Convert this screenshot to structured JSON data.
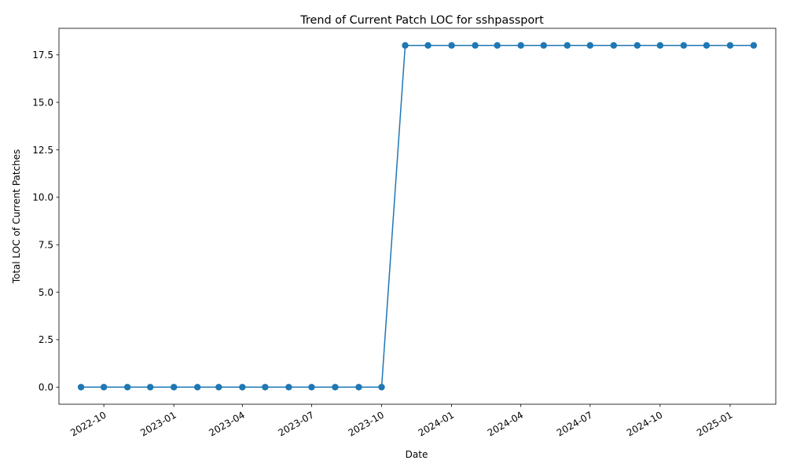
{
  "chart_data": {
    "type": "line",
    "title": "Trend of Current Patch LOC for sshpassport",
    "xlabel": "Date",
    "ylabel": "Total LOC of Current Patches",
    "x": [
      "2022-09-01",
      "2022-10-01",
      "2022-11-01",
      "2022-12-01",
      "2023-01-01",
      "2023-02-01",
      "2023-03-01",
      "2023-04-01",
      "2023-05-01",
      "2023-06-01",
      "2023-07-01",
      "2023-08-01",
      "2023-09-01",
      "2023-10-01",
      "2023-11-01",
      "2023-12-01",
      "2024-01-01",
      "2024-02-01",
      "2024-03-01",
      "2024-04-01",
      "2024-05-01",
      "2024-06-01",
      "2024-07-01",
      "2024-08-01",
      "2024-09-01",
      "2024-10-01",
      "2024-11-01",
      "2024-12-01",
      "2025-01-01",
      "2025-02-01"
    ],
    "series": [
      {
        "values": [
          0,
          0,
          0,
          0,
          0,
          0,
          0,
          0,
          0,
          0,
          0,
          0,
          0,
          0,
          18,
          18,
          18,
          18,
          18,
          18,
          18,
          18,
          18,
          18,
          18,
          18,
          18,
          18,
          18,
          18
        ],
        "color": "#1f77b4",
        "marker": "circle"
      }
    ],
    "xticks": [
      "2022-10",
      "2023-01",
      "2023-04",
      "2023-07",
      "2023-10",
      "2024-01",
      "2024-04",
      "2024-07",
      "2024-10",
      "2025-01"
    ],
    "yticks": [
      "0.0",
      "2.5",
      "5.0",
      "7.5",
      "10.0",
      "12.5",
      "15.0",
      "17.5"
    ],
    "ylim": [
      -0.9,
      18.9
    ],
    "xlim": [
      "2022-08-03",
      "2025-03-02"
    ],
    "grid": false,
    "legend": "none"
  }
}
